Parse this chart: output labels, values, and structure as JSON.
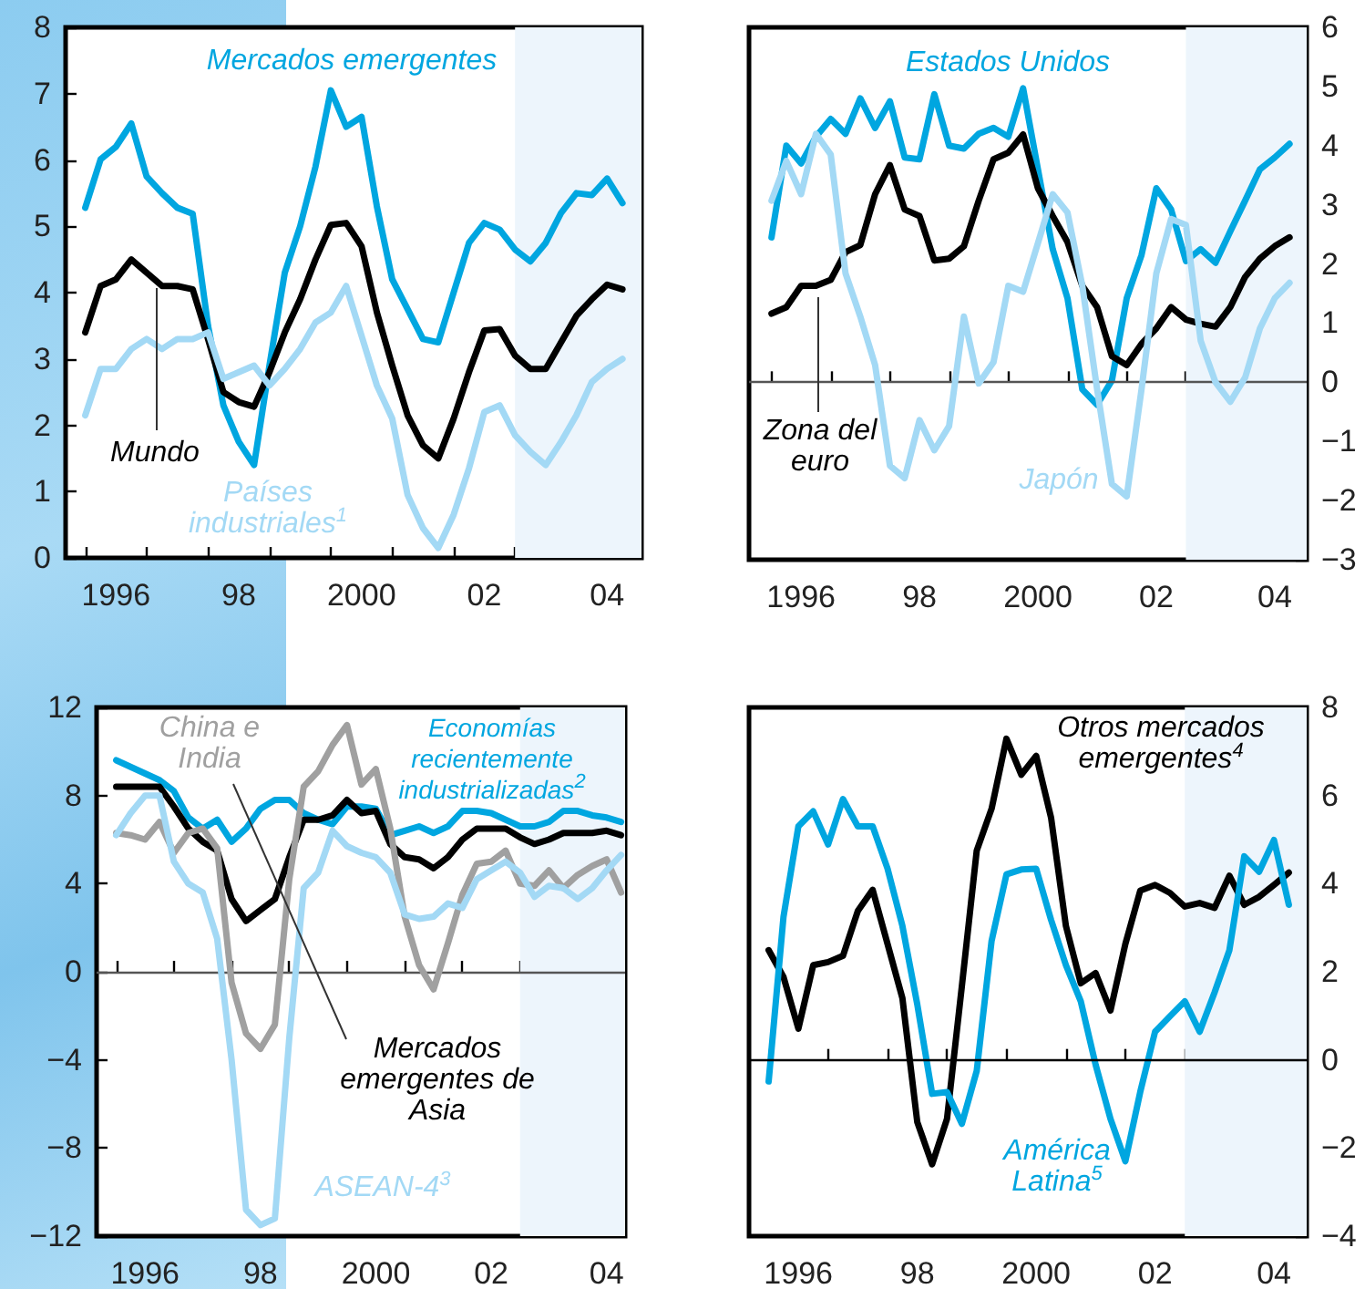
{
  "chart_data": [
    {
      "type": "line",
      "marker": "none",
      "line_style": "solid",
      "xlim": [
        1995.18,
        2004.56
      ],
      "ylim": [
        0,
        8
      ],
      "yticks": [
        0,
        1,
        2,
        3,
        4,
        5,
        6,
        7,
        8
      ],
      "xticks": [
        {
          "value": 1995.5,
          "label": null
        },
        {
          "value": 1996,
          "label": "1996"
        },
        {
          "value": 1996.5,
          "label": null
        },
        {
          "value": 1997.5,
          "label": null
        },
        {
          "value": 1998,
          "label": "98"
        },
        {
          "value": 1998.5,
          "label": null
        },
        {
          "value": 1999.5,
          "label": null
        },
        {
          "value": 2000,
          "label": "2000"
        },
        {
          "value": 2000.5,
          "label": null
        },
        {
          "value": 2001.5,
          "label": null
        },
        {
          "value": 2002,
          "label": "02"
        },
        {
          "value": 2002.5,
          "label": null
        },
        {
          "value": 2003.5,
          "label": null
        },
        {
          "value": 2004,
          "label": "04"
        }
      ],
      "x": [
        1995.5,
        1995.75,
        1996,
        1996.25,
        1996.5,
        1996.75,
        1997,
        1997.25,
        1997.5,
        1997.75,
        1998,
        1998.25,
        1998.5,
        1998.75,
        1999,
        1999.25,
        1999.5,
        1999.75,
        2000,
        2000.25,
        2000.5,
        2000.75,
        2001,
        2001.25,
        2001.5,
        2001.75,
        2002,
        2002.25,
        2002.5,
        2002.75,
        2003,
        2003.25,
        2003.5,
        2003.75,
        2004,
        2004.25
      ],
      "bands": [
        {
          "axis": "x",
          "from": 2002.5,
          "to": 2004.56,
          "color": "#edf5fc"
        }
      ],
      "series": [
        {
          "name": "Mercados emergentes",
          "color": "#00a6e0",
          "values": [
            5.28,
            6.01,
            6.2,
            6.55,
            5.75,
            5.5,
            5.28,
            5.19,
            3.5,
            2.3,
            1.75,
            1.4,
            2.9,
            4.3,
            5.0,
            5.9,
            7.05,
            6.5,
            6.65,
            5.3,
            4.2,
            3.75,
            3.3,
            3.25,
            4.0,
            4.75,
            5.05,
            4.95,
            4.65,
            4.47,
            4.75,
            5.2,
            5.5,
            5.47,
            5.72,
            5.35
          ]
        },
        {
          "name": "Mundo",
          "color": "#000000",
          "values": [
            3.4,
            4.1,
            4.2,
            4.5,
            4.3,
            4.1,
            4.1,
            4.05,
            3.3,
            2.5,
            2.35,
            2.28,
            2.8,
            3.4,
            3.9,
            4.5,
            5.02,
            5.05,
            4.7,
            3.7,
            2.9,
            2.15,
            1.7,
            1.5,
            2.1,
            2.8,
            3.43,
            3.45,
            3.05,
            2.85,
            2.85,
            3.25,
            3.65,
            3.9,
            4.12,
            4.05
          ]
        },
        {
          "name": "Países industriales$^{1}$",
          "color": "#a3d9f5",
          "values": [
            2.15,
            2.85,
            2.85,
            3.15,
            3.3,
            3.15,
            3.3,
            3.3,
            3.4,
            2.7,
            2.8,
            2.9,
            2.6,
            2.85,
            3.15,
            3.55,
            3.7,
            4.1,
            3.35,
            2.6,
            2.1,
            0.95,
            0.45,
            0.15,
            0.65,
            1.35,
            2.2,
            2.3,
            1.85,
            1.6,
            1.4,
            1.75,
            2.15,
            2.65,
            2.85,
            3.0
          ]
        }
      ]
    },
    {
      "type": "line",
      "marker": "none",
      "line_style": "solid",
      "xlim": [
        1995.12,
        2004.54
      ],
      "ylim": [
        -3,
        6
      ],
      "yticks": [
        {
          "value": -3,
          "label": "−3"
        },
        {
          "value": -2,
          "label": "−2"
        },
        {
          "value": -1,
          "label": "−1"
        },
        0,
        1,
        2,
        3,
        4,
        5,
        6
      ],
      "xticks": [
        {
          "value": 1995.5,
          "label": null
        },
        {
          "value": 1996,
          "label": "1996"
        },
        {
          "value": 1996.5,
          "label": null
        },
        {
          "value": 1997.5,
          "label": null
        },
        {
          "value": 1998,
          "label": "98"
        },
        {
          "value": 1998.5,
          "label": null
        },
        {
          "value": 1999.5,
          "label": null
        },
        {
          "value": 2000,
          "label": "2000"
        },
        {
          "value": 2000.5,
          "label": null
        },
        {
          "value": 2001.5,
          "label": null
        },
        {
          "value": 2002,
          "label": "02"
        },
        {
          "value": 2002.5,
          "label": null
        },
        {
          "value": 2003.5,
          "label": null
        },
        {
          "value": 2004,
          "label": "04"
        }
      ],
      "x": [
        1995.5,
        1995.75,
        1996,
        1996.25,
        1996.5,
        1996.75,
        1997,
        1997.25,
        1997.5,
        1997.75,
        1998,
        1998.25,
        1998.5,
        1998.75,
        1999,
        1999.25,
        1999.5,
        1999.75,
        2000,
        2000.25,
        2000.5,
        2000.75,
        2001,
        2001.25,
        2001.5,
        2001.75,
        2002,
        2002.25,
        2002.5,
        2002.75,
        2003,
        2003.25,
        2003.5,
        2003.75,
        2004,
        2004.25
      ],
      "bands": [
        {
          "axis": "x",
          "from": 2002.5,
          "to": 2004.54,
          "color": "#edf5fc"
        }
      ],
      "ref_lines": [
        {
          "axis": "y",
          "value": 0,
          "color": "#555555"
        }
      ],
      "series": [
        {
          "name": "Estados Unidos",
          "color": "#00a6e0",
          "values": [
            2.45,
            4.0,
            3.7,
            4.15,
            4.45,
            4.2,
            4.8,
            4.3,
            4.75,
            3.8,
            3.77,
            4.87,
            4.0,
            3.95,
            4.2,
            4.3,
            4.15,
            4.97,
            3.6,
            2.25,
            1.42,
            -0.12,
            -0.38,
            0.03,
            1.42,
            2.15,
            3.28,
            2.92,
            2.05,
            2.25,
            2.02,
            2.55,
            3.07,
            3.6,
            3.8,
            4.03
          ]
        },
        {
          "name": "Zona del euro",
          "color": "#000000",
          "values": [
            1.16,
            1.27,
            1.63,
            1.63,
            1.73,
            2.2,
            2.32,
            3.18,
            3.67,
            2.92,
            2.81,
            2.06,
            2.09,
            2.3,
            3.07,
            3.77,
            3.88,
            4.19,
            3.28,
            2.81,
            2.37,
            1.63,
            1.27,
            0.44,
            0.29,
            0.65,
            0.91,
            1.27,
            1.06,
            0.99,
            0.94,
            1.27,
            1.78,
            2.09,
            2.3,
            2.45
          ]
        },
        {
          "name": "Japón",
          "color": "#a3d9f5",
          "values": [
            3.07,
            3.74,
            3.18,
            4.2,
            3.85,
            1.84,
            1.11,
            0.29,
            -1.41,
            -1.62,
            -0.64,
            -1.15,
            -0.74,
            1.11,
            -0.02,
            0.34,
            1.63,
            1.53,
            2.35,
            3.18,
            2.87,
            1.63,
            -0.12,
            -1.72,
            -1.93,
            -0.12,
            1.84,
            2.76,
            2.66,
            0.7,
            0.0,
            -0.33,
            0.08,
            0.91,
            1.42,
            1.68
          ]
        }
      ]
    },
    {
      "type": "line",
      "marker": "none",
      "line_style": "solid",
      "xlim": [
        1995.16,
        2004.32
      ],
      "ylim": [
        -12,
        12
      ],
      "yticks": [
        {
          "value": -12,
          "label": "−12"
        },
        {
          "value": -8,
          "label": "−8"
        },
        {
          "value": -4,
          "label": "−4"
        },
        0,
        4,
        8,
        12
      ],
      "xticks": [
        {
          "value": 1995.5,
          "label": null
        },
        {
          "value": 1996,
          "label": "1996"
        },
        {
          "value": 1996.5,
          "label": null
        },
        {
          "value": 1997.5,
          "label": null
        },
        {
          "value": 1998,
          "label": "98"
        },
        {
          "value": 1998.5,
          "label": null
        },
        {
          "value": 1999.5,
          "label": null
        },
        {
          "value": 2000,
          "label": "2000"
        },
        {
          "value": 2000.5,
          "label": null
        },
        {
          "value": 2001.5,
          "label": null
        },
        {
          "value": 2002,
          "label": "02"
        },
        {
          "value": 2002.5,
          "label": null
        },
        {
          "value": 2003.5,
          "label": null
        },
        {
          "value": 2004,
          "label": "04"
        }
      ],
      "x": [
        1995.5,
        1995.75,
        1996,
        1996.25,
        1996.5,
        1996.75,
        1997,
        1997.25,
        1997.5,
        1997.75,
        1998,
        1998.25,
        1998.5,
        1998.75,
        1999,
        1999.25,
        1999.5,
        1999.75,
        2000,
        2000.25,
        2000.5,
        2000.75,
        2001,
        2001.25,
        2001.5,
        2001.75,
        2002,
        2002.25,
        2002.5,
        2002.75,
        2003,
        2003.25,
        2003.5,
        2003.75,
        2004,
        2004.25
      ],
      "bands": [
        {
          "axis": "x",
          "from": 2002.5,
          "to": 2004.32,
          "color": "#edf5fc"
        }
      ],
      "ref_lines": [
        {
          "axis": "y",
          "value": 0,
          "color": "#555555"
        }
      ],
      "series": [
        {
          "name": "Economías recientemente industrializadas$^{2}$",
          "color": "#00a6e0",
          "values": [
            9.6,
            9.3,
            9.0,
            8.7,
            8.2,
            7.0,
            6.5,
            6.9,
            5.9,
            6.5,
            7.4,
            7.8,
            7.8,
            7.2,
            6.9,
            6.7,
            7.5,
            7.5,
            7.4,
            6.2,
            6.4,
            6.6,
            6.3,
            6.6,
            7.3,
            7.3,
            7.2,
            6.9,
            6.6,
            6.6,
            6.8,
            7.3,
            7.3,
            7.1,
            7.0,
            6.8
          ]
        },
        {
          "name": "Mercados emergentes de Asia",
          "color": "#000000",
          "values": [
            8.4,
            8.4,
            8.4,
            8.4,
            7.5,
            6.5,
            5.9,
            5.5,
            3.3,
            2.3,
            2.8,
            3.3,
            5.2,
            6.9,
            6.9,
            7.1,
            7.8,
            7.2,
            7.3,
            5.8,
            5.2,
            5.1,
            4.7,
            5.2,
            6.0,
            6.5,
            6.5,
            6.5,
            6.1,
            5.8,
            6.0,
            6.3,
            6.3,
            6.3,
            6.4,
            6.2
          ]
        },
        {
          "name": "China e India",
          "color": "#a0a0a0",
          "values": [
            6.3,
            6.2,
            6.0,
            6.8,
            5.4,
            6.3,
            6.5,
            5.6,
            -0.5,
            -2.8,
            -3.5,
            -2.4,
            4.2,
            8.4,
            9.1,
            10.3,
            11.2,
            8.5,
            9.2,
            6.5,
            2.5,
            0.3,
            -0.8,
            1.3,
            3.5,
            4.9,
            5.0,
            5.5,
            4.0,
            3.9,
            4.6,
            3.8,
            4.4,
            4.8,
            5.1,
            3.6
          ]
        },
        {
          "name": "ASEAN-4$^{3}$",
          "color": "#a3d9f5",
          "values": [
            6.2,
            7.2,
            8.0,
            8.0,
            5.0,
            4.0,
            3.6,
            1.5,
            -4.0,
            -10.8,
            -11.5,
            -11.2,
            -3.0,
            3.8,
            4.5,
            6.4,
            5.7,
            5.4,
            5.2,
            4.5,
            2.6,
            2.4,
            2.5,
            3.1,
            2.9,
            4.2,
            4.6,
            5.0,
            4.5,
            3.4,
            3.9,
            3.8,
            3.3,
            3.8,
            4.6,
            5.3
          ]
        }
      ]
    },
    {
      "type": "line",
      "marker": "none",
      "line_style": "solid",
      "xlim": [
        1995.17,
        2004.55
      ],
      "ylim": [
        -4,
        8
      ],
      "yticks": [
        {
          "value": -4,
          "label": "−4"
        },
        {
          "value": -2,
          "label": "−2"
        },
        0,
        2,
        4,
        6,
        8
      ],
      "xticks": [
        {
          "value": 1995.5,
          "label": null
        },
        {
          "value": 1996,
          "label": "1996"
        },
        {
          "value": 1996.5,
          "label": null
        },
        {
          "value": 1997.5,
          "label": null
        },
        {
          "value": 1998,
          "label": "98"
        },
        {
          "value": 1998.5,
          "label": null
        },
        {
          "value": 1999.5,
          "label": null
        },
        {
          "value": 2000,
          "label": "2000"
        },
        {
          "value": 2000.5,
          "label": null
        },
        {
          "value": 2001.5,
          "label": null
        },
        {
          "value": 2002,
          "label": "02"
        },
        {
          "value": 2002.5,
          "label": null
        },
        {
          "value": 2003.5,
          "label": null
        },
        {
          "value": 2004,
          "label": "04"
        }
      ],
      "x": [
        1995.5,
        1995.75,
        1996,
        1996.25,
        1996.5,
        1996.75,
        1997,
        1997.25,
        1997.5,
        1997.75,
        1998,
        1998.25,
        1998.5,
        1998.75,
        1999,
        1999.25,
        1999.5,
        1999.75,
        2000,
        2000.25,
        2000.5,
        2000.75,
        2001,
        2001.25,
        2001.5,
        2001.75,
        2002,
        2002.25,
        2002.5,
        2002.75,
        2003,
        2003.25,
        2003.5,
        2003.75,
        2004,
        2004.25
      ],
      "bands": [
        {
          "axis": "x",
          "from": 2002.5,
          "to": 2004.55,
          "color": "#edf5fc"
        }
      ],
      "ref_lines": [
        {
          "axis": "y",
          "value": 0,
          "color": "#000000"
        }
      ],
      "series": [
        {
          "name": "Otros mercados emergentes$^{4}$",
          "color": "#000000",
          "values": [
            2.49,
            1.88,
            0.71,
            2.15,
            2.22,
            2.36,
            3.38,
            3.86,
            2.63,
            1.4,
            -1.41,
            -2.37,
            -1.34,
            1.67,
            4.75,
            5.7,
            7.29,
            6.47,
            6.9,
            5.5,
            3.04,
            1.74,
            1.97,
            1.12,
            2.63,
            3.84,
            3.97,
            3.79,
            3.48,
            3.56,
            3.45,
            4.18,
            3.52,
            3.7,
            3.97,
            4.25
          ]
        },
        {
          "name": "América Latina$^{5}$",
          "color": "#00a6e0",
          "values": [
            -0.49,
            3.25,
            5.3,
            5.64,
            4.89,
            5.92,
            5.3,
            5.3,
            4.34,
            3.04,
            1.26,
            -0.77,
            -0.73,
            -1.45,
            -0.25,
            2.7,
            4.21,
            4.32,
            4.34,
            3.18,
            2.15,
            1.33,
            -0.11,
            -1.34,
            -2.3,
            -0.73,
            0.64,
            0.99,
            1.33,
            0.64,
            1.53,
            2.49,
            4.62,
            4.27,
            4.99,
            3.52
          ]
        }
      ]
    }
  ]
}
